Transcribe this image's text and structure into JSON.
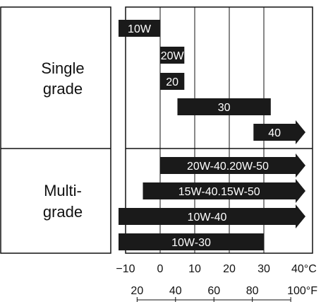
{
  "chart_data": {
    "type": "bar",
    "title": "",
    "xlabel": "",
    "ylabel": "",
    "units_c": "°C",
    "units_f": "°F",
    "xlim_c": [
      -10,
      40
    ],
    "grid": true,
    "groups": [
      {
        "name": "Single grade",
        "line1": "Single",
        "line2": "grade"
      },
      {
        "name": "Multi-grade",
        "line1": "Multi-",
        "line2": "grade"
      }
    ],
    "bars": [
      {
        "label": "10W",
        "group": "Single grade",
        "start": -10,
        "end": 0,
        "arrow": false
      },
      {
        "label": "20W",
        "group": "Single grade",
        "start": 0,
        "end": 7,
        "arrow": false
      },
      {
        "label": "20",
        "group": "Single grade",
        "start": 0,
        "end": 7,
        "arrow": false
      },
      {
        "label": "30",
        "group": "Single grade",
        "start": 5,
        "end": 32,
        "arrow": false
      },
      {
        "label": "40",
        "group": "Single grade",
        "start": 27,
        "end": 40,
        "arrow": true
      },
      {
        "label": "20W-40.20W-50",
        "group": "Multi-grade",
        "start": 0,
        "end": 40,
        "arrow": true
      },
      {
        "label": "15W-40.15W-50",
        "group": "Multi-grade",
        "start": -5,
        "end": 40,
        "arrow": true
      },
      {
        "label": "10W-40",
        "group": "Multi-grade",
        "start": -10,
        "end": 40,
        "arrow": true
      },
      {
        "label": "10W-30",
        "group": "Multi-grade",
        "start": -10,
        "end": 30,
        "arrow": false
      }
    ],
    "ticks_c": [
      {
        "value": -10,
        "label": "−10"
      },
      {
        "value": 0,
        "label": "0"
      },
      {
        "value": 10,
        "label": "10"
      },
      {
        "value": 20,
        "label": "20"
      },
      {
        "value": 30,
        "label": "30"
      },
      {
        "value": 40,
        "label": "40°C"
      }
    ],
    "ticks_f": [
      {
        "value": 20,
        "label": "20"
      },
      {
        "value": 40,
        "label": "40"
      },
      {
        "value": 60,
        "label": "60"
      },
      {
        "value": 80,
        "label": "80"
      },
      {
        "value": 100,
        "label": "100°F"
      }
    ]
  }
}
